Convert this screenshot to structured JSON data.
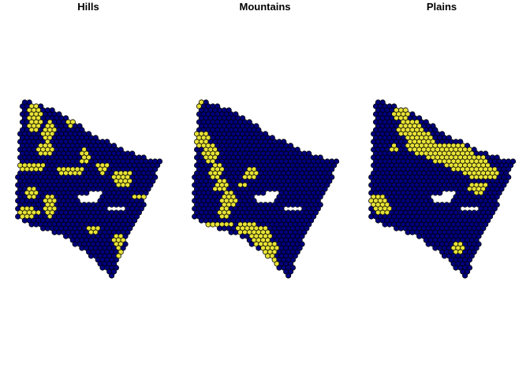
{
  "figure": {
    "panels": [
      {
        "title": "Hills"
      },
      {
        "title": "Mountains"
      },
      {
        "title": "Plains"
      }
    ]
  },
  "colors": {
    "background_cells": "#00007f",
    "highlighted_cells": "#e8e337",
    "cell_outline": "#000000"
  },
  "map_data": {
    "type": "hexagonal-grid-maps",
    "panel_count": 3,
    "legend": "none",
    "axes": "none"
  }
}
